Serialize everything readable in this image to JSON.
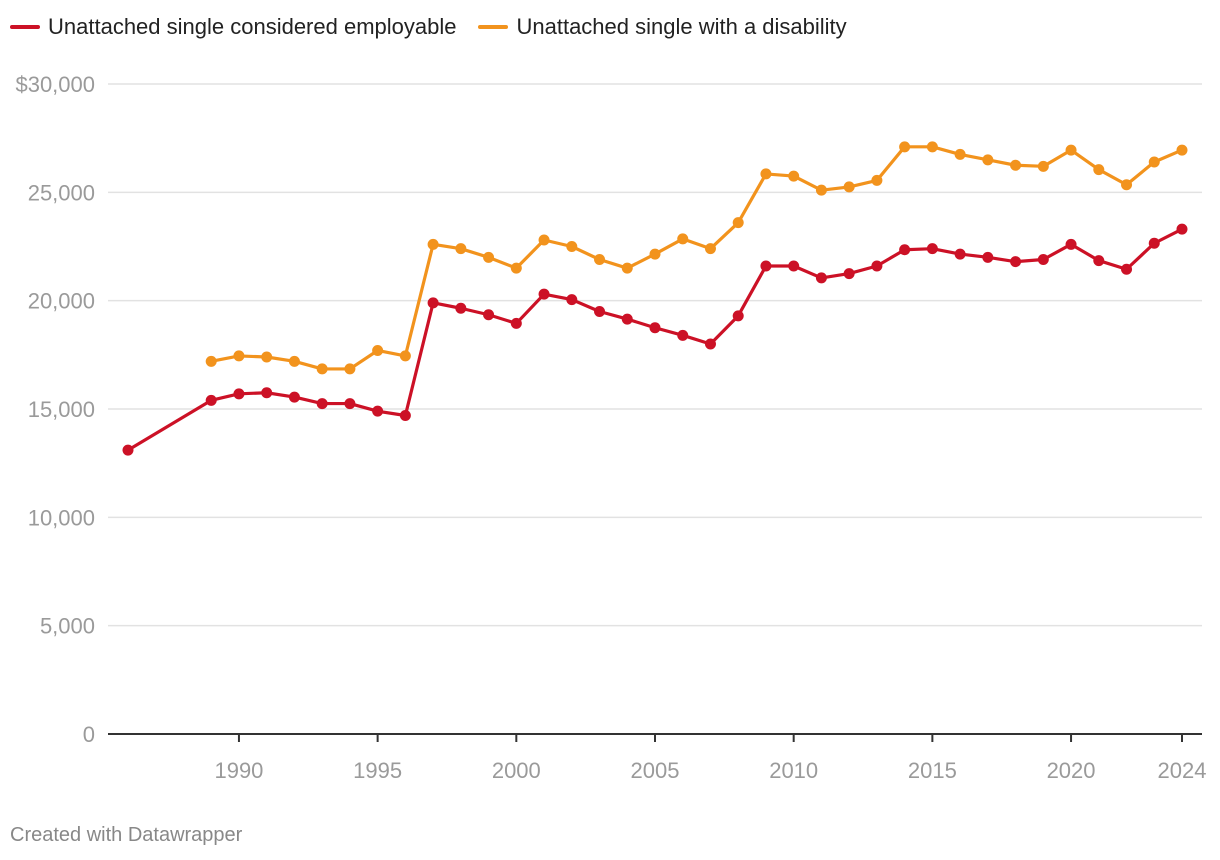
{
  "legend": {
    "items": [
      {
        "label": "Unattached single considered employable",
        "color": "#cc1126"
      },
      {
        "label": "Unattached single with a disability",
        "color": "#f2931d"
      }
    ]
  },
  "footer": {
    "credit": "Created with Datawrapper"
  },
  "chart_data": {
    "type": "line",
    "title": "",
    "xlabel": "",
    "ylabel": "",
    "ylim": [
      0,
      30000
    ],
    "xlim": [
      1986,
      2024
    ],
    "y_ticks": [
      {
        "value": 0,
        "label": "0"
      },
      {
        "value": 5000,
        "label": "5,000"
      },
      {
        "value": 10000,
        "label": "10,000"
      },
      {
        "value": 15000,
        "label": "15,000"
      },
      {
        "value": 20000,
        "label": "20,000"
      },
      {
        "value": 25000,
        "label": "25,000"
      },
      {
        "value": 30000,
        "label": "$30,000"
      }
    ],
    "x_ticks": [
      {
        "value": 1990,
        "label": "1990"
      },
      {
        "value": 1995,
        "label": "1995"
      },
      {
        "value": 2000,
        "label": "2000"
      },
      {
        "value": 2005,
        "label": "2005"
      },
      {
        "value": 2010,
        "label": "2010"
      },
      {
        "value": 2015,
        "label": "2015"
      },
      {
        "value": 2020,
        "label": "2020"
      },
      {
        "value": 2024,
        "label": "2024"
      }
    ],
    "grid": true,
    "series": [
      {
        "name": "Unattached single considered employable",
        "color": "#cc1126",
        "x": [
          1986,
          1989,
          1990,
          1991,
          1992,
          1993,
          1994,
          1995,
          1996,
          1997,
          1998,
          1999,
          2000,
          2001,
          2002,
          2003,
          2004,
          2005,
          2006,
          2007,
          2008,
          2009,
          2010,
          2011,
          2012,
          2013,
          2014,
          2015,
          2016,
          2017,
          2018,
          2019,
          2020,
          2021,
          2022,
          2023,
          2024
        ],
        "values": [
          13100,
          15400,
          15700,
          15750,
          15550,
          15250,
          15250,
          14900,
          14700,
          19900,
          19650,
          19350,
          18950,
          20300,
          20050,
          19500,
          19150,
          18750,
          18400,
          18000,
          19300,
          21600,
          21600,
          21050,
          21250,
          21600,
          22350,
          22400,
          22150,
          22000,
          21800,
          21900,
          22600,
          21850,
          21450,
          22650,
          23300
        ]
      },
      {
        "name": "Unattached single with a disability",
        "color": "#f2931d",
        "x": [
          1989,
          1990,
          1991,
          1992,
          1993,
          1994,
          1995,
          1996,
          1997,
          1998,
          1999,
          2000,
          2001,
          2002,
          2003,
          2004,
          2005,
          2006,
          2007,
          2008,
          2009,
          2010,
          2011,
          2012,
          2013,
          2014,
          2015,
          2016,
          2017,
          2018,
          2019,
          2020,
          2021,
          2022,
          2023,
          2024
        ],
        "values": [
          17200,
          17450,
          17400,
          17200,
          16850,
          16850,
          17700,
          17450,
          22600,
          22400,
          22000,
          21500,
          22800,
          22500,
          21900,
          21500,
          22150,
          22850,
          22400,
          23600,
          25850,
          25750,
          25100,
          25250,
          25550,
          27100,
          27100,
          26750,
          26500,
          26250,
          26200,
          26950,
          26050,
          25350,
          26400,
          26950
        ]
      }
    ]
  }
}
